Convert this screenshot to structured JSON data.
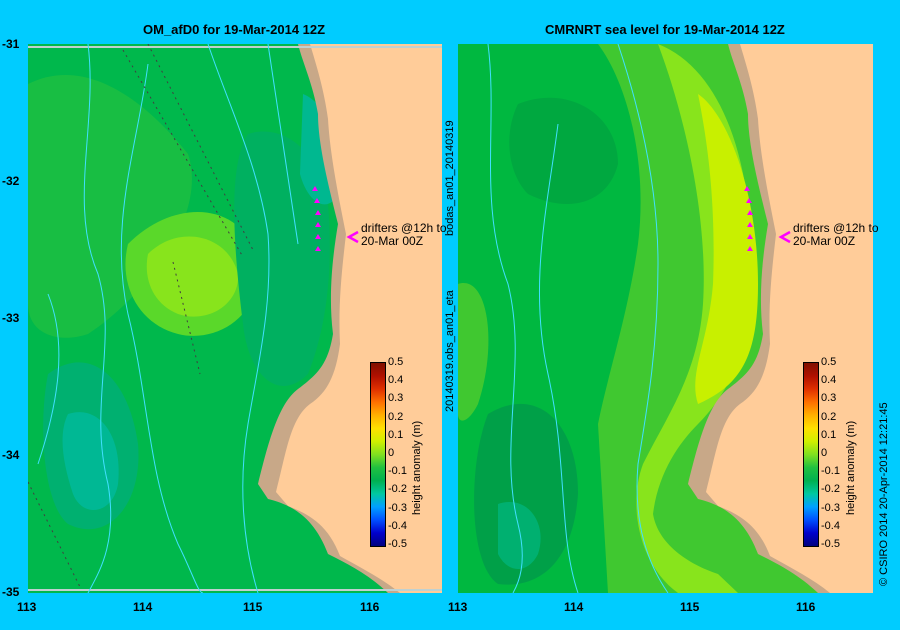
{
  "left_panel": {
    "title": "OM_afD0 for 19-Mar-2014 12Z",
    "colorbar_label": "height anomaly (m)",
    "annotation_line1": "drifters @12h to",
    "annotation_line2": "20-Mar 00Z"
  },
  "right_panel": {
    "title": "CMRNRT sea level  for 19-Mar-2014 12Z",
    "side_label_top": "bodas_an01_20140319",
    "side_label_bottom": "20140319.obs_an01_eta",
    "colorbar_label": "height anomaly (m)",
    "annotation_line1": "drifters @12h to",
    "annotation_line2": "20-Mar 00Z"
  },
  "y_ticks": [
    "-31",
    "-32",
    "-33",
    "-34",
    "-35"
  ],
  "x_ticks": [
    "113",
    "114",
    "115",
    "116"
  ],
  "colorbar_ticks": [
    "0.5",
    "0.4",
    "0.3",
    "0.2",
    "0.1",
    "0",
    "-0.1",
    "-0.2",
    "-0.3",
    "-0.4",
    "-0.5"
  ],
  "credit": "© CSIRO 2014   20-Apr-2014 12:21:45",
  "colors": {
    "background": "#00ccff",
    "land": "#ffcc99",
    "coast": "#c8a888",
    "drifter": "#ff00ff",
    "contour": "#40e0ff"
  },
  "colorbar_colors": [
    "#000080",
    "#0000cc",
    "#0050ff",
    "#00a0ff",
    "#00c8a0",
    "#00b050",
    "#20c040",
    "#80e020",
    "#d0f000",
    "#ffe000",
    "#ffb000",
    "#ff7000",
    "#e03000",
    "#b01000",
    "#801000"
  ]
}
